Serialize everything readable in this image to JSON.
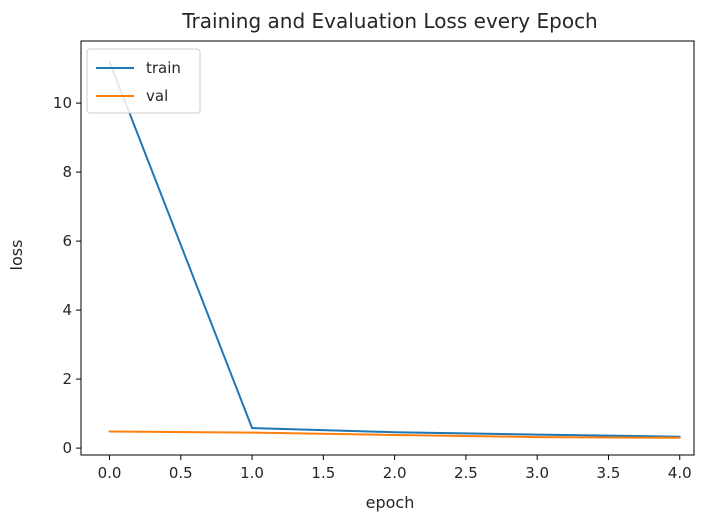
{
  "chart_data": {
    "type": "line",
    "title": "Training and Evaluation Loss every Epoch",
    "xlabel": "epoch",
    "ylabel": "loss",
    "x": [
      0,
      1,
      2,
      3,
      4
    ],
    "series": [
      {
        "name": "train",
        "color": "#1f77b4",
        "values": [
          11.2,
          0.58,
          0.46,
          0.39,
          0.33
        ]
      },
      {
        "name": "val",
        "color": "#ff7f0e",
        "values": [
          0.48,
          0.45,
          0.38,
          0.32,
          0.3
        ]
      }
    ],
    "xlim": [
      -0.2,
      4.1
    ],
    "ylim": [
      -0.2,
      11.8
    ],
    "xticks": [
      0.0,
      0.5,
      1.0,
      1.5,
      2.0,
      2.5,
      3.0,
      3.5,
      4.0
    ],
    "xtick_labels": [
      "0.0",
      "0.5",
      "1.0",
      "1.5",
      "2.0",
      "2.5",
      "3.0",
      "3.5",
      "4.0"
    ],
    "yticks": [
      0,
      2,
      4,
      6,
      8,
      10
    ],
    "ytick_labels": [
      "0",
      "2",
      "4",
      "6",
      "8",
      "10"
    ],
    "grid": false,
    "legend_position": "upper-left"
  }
}
